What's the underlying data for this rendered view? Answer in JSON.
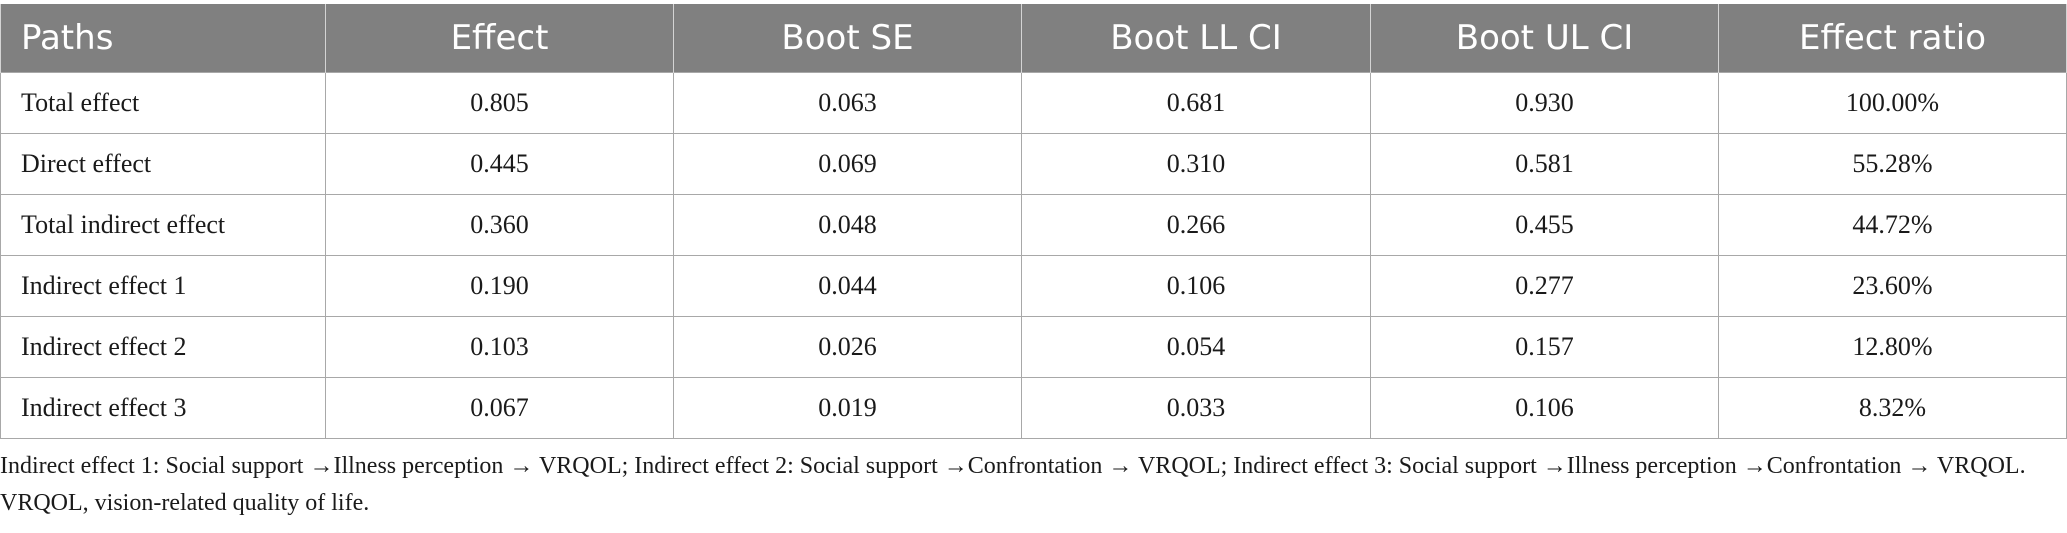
{
  "table": {
    "headers": [
      "Paths",
      "Effect",
      "Boot SE",
      "Boot LL CI",
      "Boot UL CI",
      "Effect ratio"
    ],
    "rows": [
      [
        "Total effect",
        "0.805",
        "0.063",
        "0.681",
        "0.930",
        "100.00%"
      ],
      [
        "Direct effect",
        "0.445",
        "0.069",
        "0.310",
        "0.581",
        "55.28%"
      ],
      [
        "Total indirect effect",
        "0.360",
        "0.048",
        "0.266",
        "0.455",
        "44.72%"
      ],
      [
        "Indirect effect 1",
        "0.190",
        "0.044",
        "0.106",
        "0.277",
        "23.60%"
      ],
      [
        "Indirect effect 2",
        "0.103",
        "0.026",
        "0.054",
        "0.157",
        "12.80%"
      ],
      [
        "Indirect effect 3",
        "0.067",
        "0.019",
        "0.033",
        "0.106",
        "8.32%"
      ]
    ]
  },
  "footnote": "Indirect effect 1: Social support →Illness perception → VRQOL; Indirect effect 2: Social support →Confrontation → VRQOL; Indirect effect 3: Social support →Illness perception →Confrontation → VRQOL. VRQOL, vision-related quality of life."
}
